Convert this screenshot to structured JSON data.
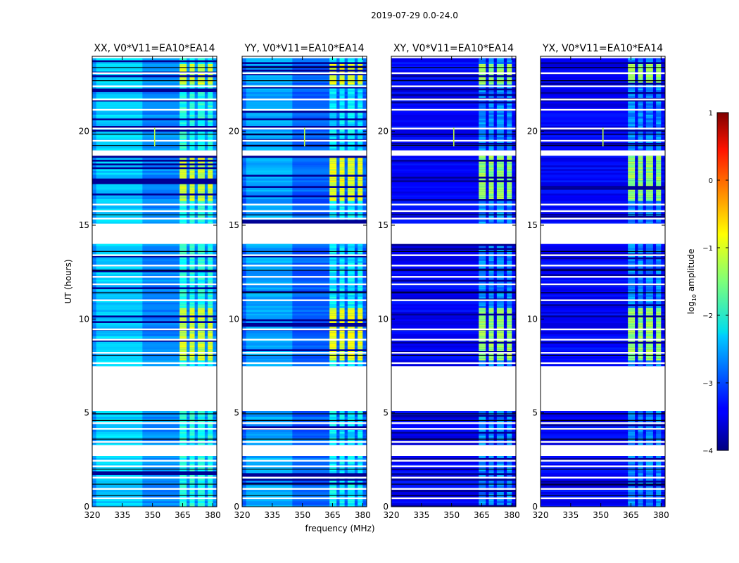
{
  "chart_data": {
    "type": "heatmap",
    "suptitle": "2019-07-29 0.0-24.0",
    "xlabel": "frequency (MHz)",
    "ylabel": "UT (hours)",
    "xlim": [
      320,
      382
    ],
    "ylim": [
      0,
      24
    ],
    "xticks": [
      320,
      335,
      350,
      365,
      380
    ],
    "yticks": [
      0,
      5,
      10,
      15,
      20
    ],
    "flagged_hour_ranges": [
      [
        2.7,
        3.3
      ],
      [
        5.15,
        7.5
      ],
      [
        14.0,
        15.1
      ],
      [
        18.75,
        19.0
      ],
      [
        23.95,
        24.0
      ]
    ],
    "rfi_channel_bands_mhz": [
      [
        363.5,
        367.0
      ],
      [
        368.5,
        371.0
      ],
      [
        372.5,
        376.0
      ],
      [
        377.5,
        380.0
      ]
    ],
    "panels": [
      {
        "title": "XX, V0*V11=EA10*EA14",
        "base_log_amp": -2.7,
        "band_log_amp": -1.1
      },
      {
        "title": "YY, V0*V11=EA10*EA14",
        "base_log_amp": -2.9,
        "band_log_amp": -1.0
      },
      {
        "title": "XY, V0*V11=EA10*EA14",
        "base_log_amp": -3.4,
        "band_log_amp": -1.4
      },
      {
        "title": "YX, V0*V11=EA10*EA14",
        "base_log_amp": -3.4,
        "band_log_amp": -1.4
      }
    ],
    "colorbar": {
      "label": "log",
      "label_sub": "10",
      "label_rest": " amplitude",
      "range": [
        -4,
        1
      ],
      "ticks": [
        "1",
        "0",
        "−1",
        "−2",
        "−3",
        "−4"
      ],
      "colormap": "jet"
    }
  }
}
